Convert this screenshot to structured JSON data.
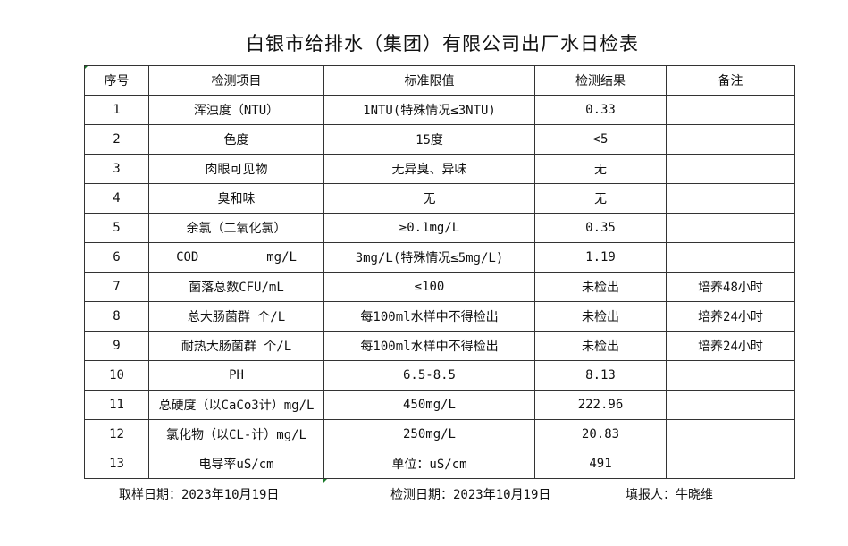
{
  "title": "白银市给排水（集团）有限公司出厂水日检表",
  "headers": [
    "序号",
    "检测项目",
    "标准限值",
    "检测结果",
    "备注"
  ],
  "rows": [
    [
      "1",
      "浑浊度（NTU）",
      "1NTU(特殊情况≤3NTU)",
      "0.33",
      ""
    ],
    [
      "2",
      "色度",
      "15度",
      "<5",
      ""
    ],
    [
      "3",
      "肉眼可见物",
      "无异臭、异味",
      "无",
      ""
    ],
    [
      "4",
      "臭和味",
      "无",
      "无",
      ""
    ],
    [
      "5",
      "余氯（二氧化氯）",
      "≥0.1mg/L",
      "0.35",
      ""
    ],
    [
      "6",
      "COD         mg/L",
      "3mg/L(特殊情况≤5mg/L)",
      "1.19",
      ""
    ],
    [
      "7",
      "菌落总数CFU/mL",
      "≤100",
      "未检出",
      "培养48小时"
    ],
    [
      "8",
      "总大肠菌群 个/L",
      "每100ml水样中不得检出",
      "未检出",
      "培养24小时"
    ],
    [
      "9",
      "耐热大肠菌群 个/L",
      "每100ml水样中不得检出",
      "未检出",
      "培养24小时"
    ],
    [
      "10",
      "PH",
      "6.5-8.5",
      "8.13",
      ""
    ],
    [
      "11",
      "总硬度（以CaCo3计）mg/L",
      "450mg/L",
      "222.96",
      ""
    ],
    [
      "12",
      "氯化物（以CL-计）mg/L",
      "250mg/L",
      "20.83",
      ""
    ],
    [
      "13",
      "电导率uS/cm",
      "单位：uS/cm",
      "491",
      ""
    ]
  ],
  "footer": {
    "sampling_date": "取样日期：2023年10月19日",
    "test_date": "检测日期：2023年10月19日",
    "reporter": "填报人：牛晓维"
  }
}
